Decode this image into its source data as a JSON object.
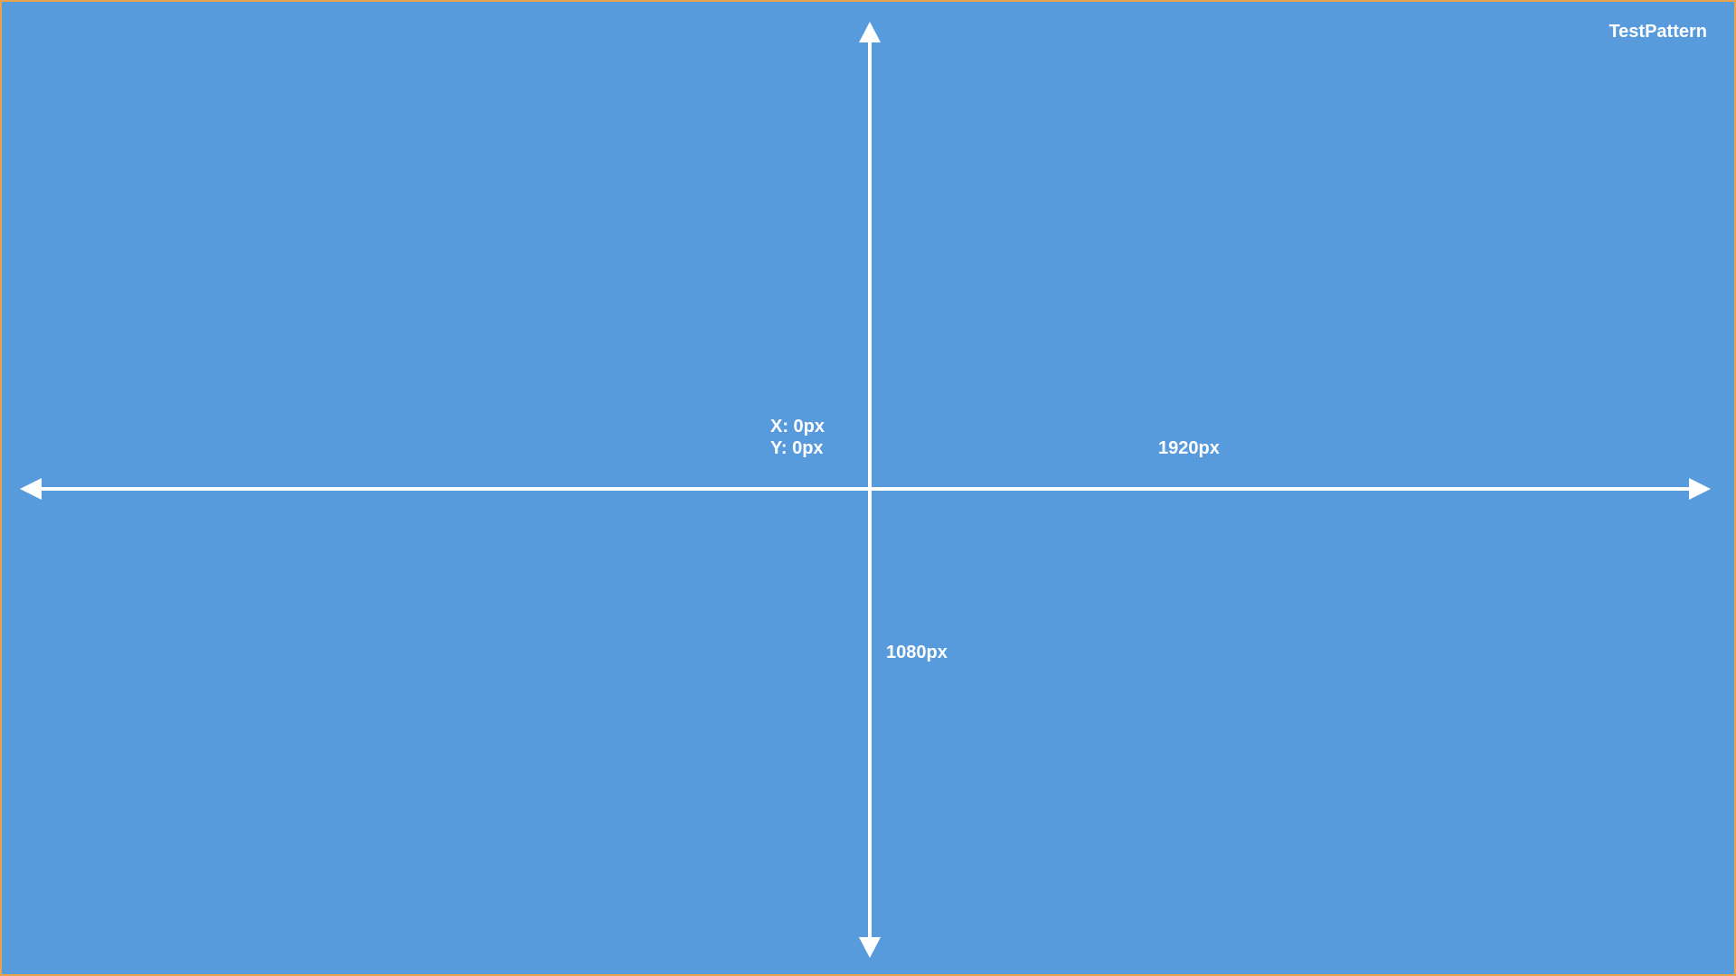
{
  "brand": {
    "label": "TestPattern"
  },
  "origin": {
    "x_label": "X: 0px",
    "y_label": "Y: 0px"
  },
  "dimensions": {
    "width_label": "1920px",
    "height_label": "1080px"
  },
  "colors": {
    "background": "#589bdc",
    "border": "#e8a44c",
    "foreground": "#ffffff"
  }
}
